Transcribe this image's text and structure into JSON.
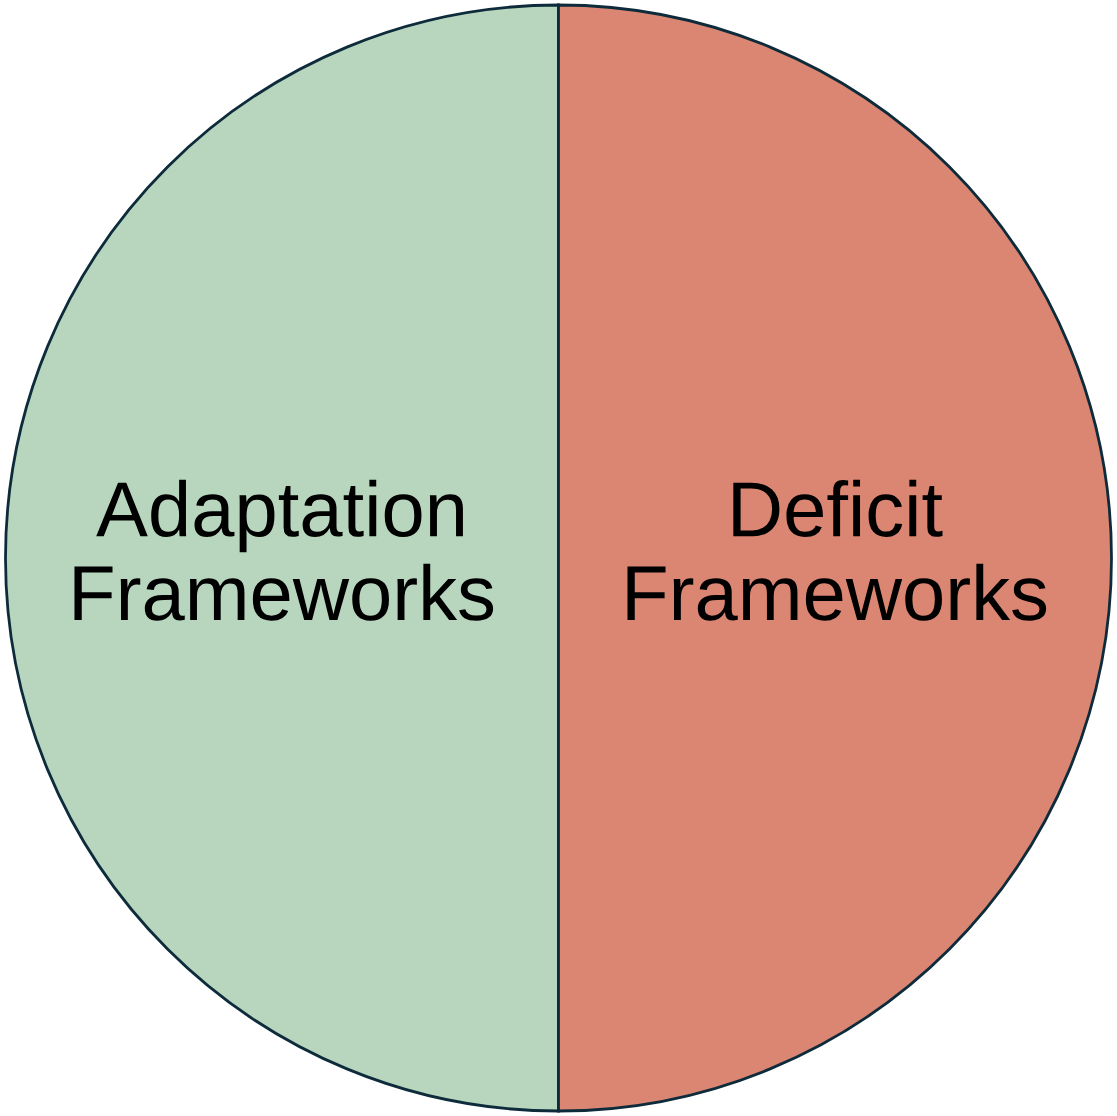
{
  "chart_data": {
    "type": "pie",
    "categories": [
      "Adaptation\nFrameworks",
      "Deficit\nFrameworks"
    ],
    "values": [
      50,
      50
    ],
    "colors": [
      "#b7d6bd",
      "#db8573"
    ],
    "legend": false
  }
}
